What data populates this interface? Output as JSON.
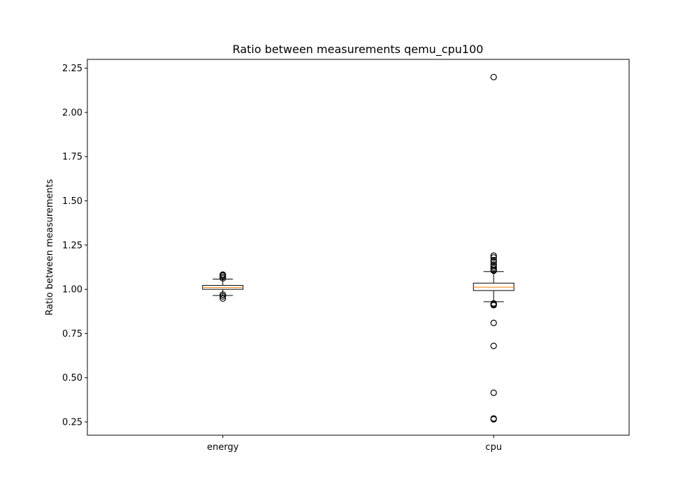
{
  "chart_data": {
    "type": "box",
    "title": "Ratio between measurements qemu_cpu100",
    "xlabel": "",
    "ylabel": "Ratio between measurements",
    "ylim": [
      0.175,
      2.3
    ],
    "yticks": [
      "0.25",
      "0.50",
      "0.75",
      "1.00",
      "1.25",
      "1.50",
      "1.75",
      "2.00",
      "2.25"
    ],
    "categories": [
      "energy",
      "cpu"
    ],
    "boxes": [
      {
        "name": "energy",
        "whisker_low": 0.965,
        "q1": 1.0,
        "median": 1.01,
        "q3": 1.022,
        "whisker_high": 1.058,
        "outliers": [
          1.062,
          1.07,
          1.078,
          1.083,
          0.97,
          0.96,
          0.948
        ]
      },
      {
        "name": "cpu",
        "whisker_low": 0.93,
        "q1": 0.993,
        "median": 1.012,
        "q3": 1.035,
        "whisker_high": 1.1,
        "outliers": [
          2.2,
          1.19,
          1.18,
          1.165,
          1.155,
          1.14,
          1.13,
          1.12,
          1.11,
          1.105,
          0.92,
          0.915,
          0.91,
          0.81,
          0.68,
          0.415,
          0.27,
          0.265
        ]
      }
    ],
    "grid": false,
    "colors": {
      "box": "#000000",
      "median": "#ff7f0e",
      "outlier": "#000000"
    }
  }
}
